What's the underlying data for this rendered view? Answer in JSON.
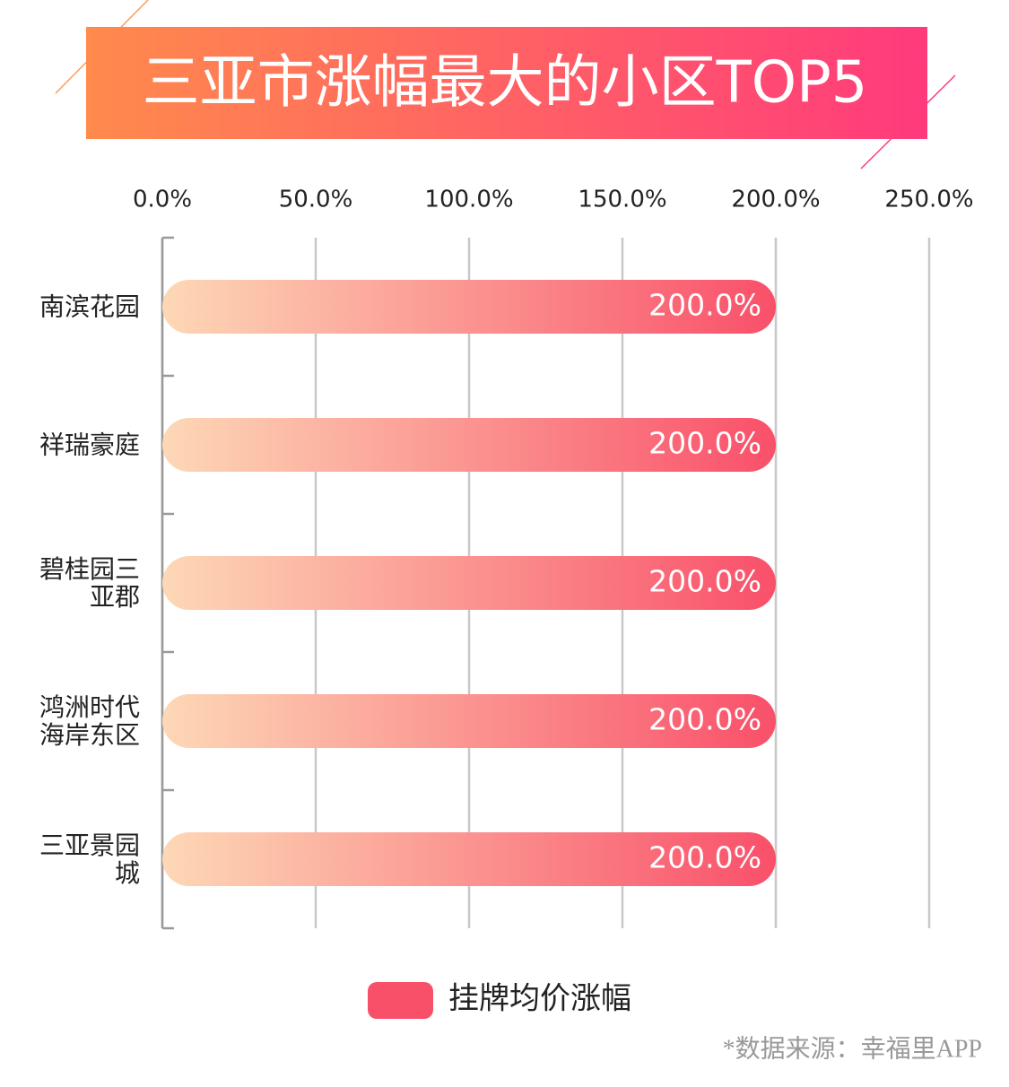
{
  "chart_data": {
    "type": "bar",
    "orientation": "horizontal",
    "title": "三亚市涨幅最大的小区TOP5",
    "categories": [
      "南滨花园",
      "祥瑞豪庭",
      "碧桂园三亚郡",
      "鸿洲时代海岸东区",
      "三亚景园城"
    ],
    "series": [
      {
        "name": "挂牌均价涨幅",
        "color": "#f9506a",
        "values": [
          200,
          200,
          200,
          200,
          200
        ],
        "value_labels": [
          "200.0%",
          "200.0%",
          "200.0%",
          "200.0%",
          "200.0%"
        ]
      }
    ],
    "xlim": [
      0,
      250
    ],
    "xticks": [
      {
        "value": 0,
        "label": "0.0%"
      },
      {
        "value": 50,
        "label": "50.0%"
      },
      {
        "value": 100,
        "label": "100.0%"
      },
      {
        "value": 150,
        "label": "150.0%"
      },
      {
        "value": 200,
        "label": "200.0%"
      },
      {
        "value": 250,
        "label": "250.0%"
      }
    ],
    "grid": true,
    "source": "*数据来源：幸福里APP"
  }
}
